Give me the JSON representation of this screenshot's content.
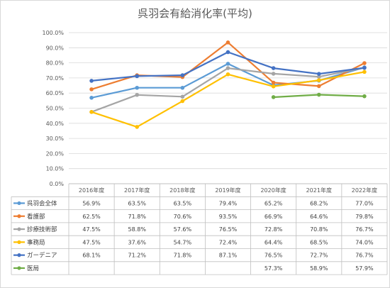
{
  "chart_data": {
    "type": "line",
    "title": "呉羽会有給消化率(平均)",
    "categories": [
      "2016年度",
      "2017年度",
      "2018年度",
      "2019年度",
      "2020年度",
      "2021年度",
      "2022年度"
    ],
    "ylim": [
      0,
      100
    ],
    "y_tick_labels": [
      "0.0%",
      "10.0%",
      "20.0%",
      "30.0%",
      "40.0%",
      "50.0%",
      "60.0%",
      "70.0%",
      "80.0%",
      "90.0%",
      "100.0%"
    ],
    "grid": true,
    "legend": "data-table",
    "series": [
      {
        "name": "呉羽会全体",
        "color": "#5b9bd5",
        "values": [
          56.9,
          63.5,
          63.5,
          79.4,
          65.2,
          68.2,
          77.0
        ],
        "labels": [
          "56.9%",
          "63.5%",
          "63.5%",
          "79.4%",
          "65.2%",
          "68.2%",
          "77.0%"
        ]
      },
      {
        "name": "看護部",
        "color": "#ed7d31",
        "values": [
          62.5,
          71.8,
          70.6,
          93.5,
          66.9,
          64.6,
          79.8
        ],
        "labels": [
          "62.5%",
          "71.8%",
          "70.6%",
          "93.5%",
          "66.9%",
          "64.6%",
          "79.8%"
        ]
      },
      {
        "name": "診療技術部",
        "color": "#a5a5a5",
        "values": [
          47.5,
          58.8,
          57.6,
          76.5,
          72.8,
          70.8,
          76.7
        ],
        "labels": [
          "47.5%",
          "58.8%",
          "57.6%",
          "76.5%",
          "72.8%",
          "70.8%",
          "76.7%"
        ]
      },
      {
        "name": "事務局",
        "color": "#ffc000",
        "values": [
          47.5,
          37.6,
          54.7,
          72.4,
          64.4,
          68.5,
          74.0
        ],
        "labels": [
          "47.5%",
          "37.6%",
          "54.7%",
          "72.4%",
          "64.4%",
          "68.5%",
          "74.0%"
        ]
      },
      {
        "name": "ガーデニア",
        "color": "#4472c4",
        "values": [
          68.1,
          71.2,
          71.8,
          87.1,
          76.5,
          72.7,
          76.7
        ],
        "labels": [
          "68.1%",
          "71.2%",
          "71.8%",
          "87.1%",
          "76.5%",
          "72.7%",
          "76.7%"
        ]
      },
      {
        "name": "医局",
        "color": "#70ad47",
        "values": [
          null,
          null,
          null,
          null,
          57.3,
          58.9,
          57.9
        ],
        "labels": [
          "",
          "",
          "",
          "",
          "57.3%",
          "58.9%",
          "57.9%"
        ]
      }
    ]
  }
}
